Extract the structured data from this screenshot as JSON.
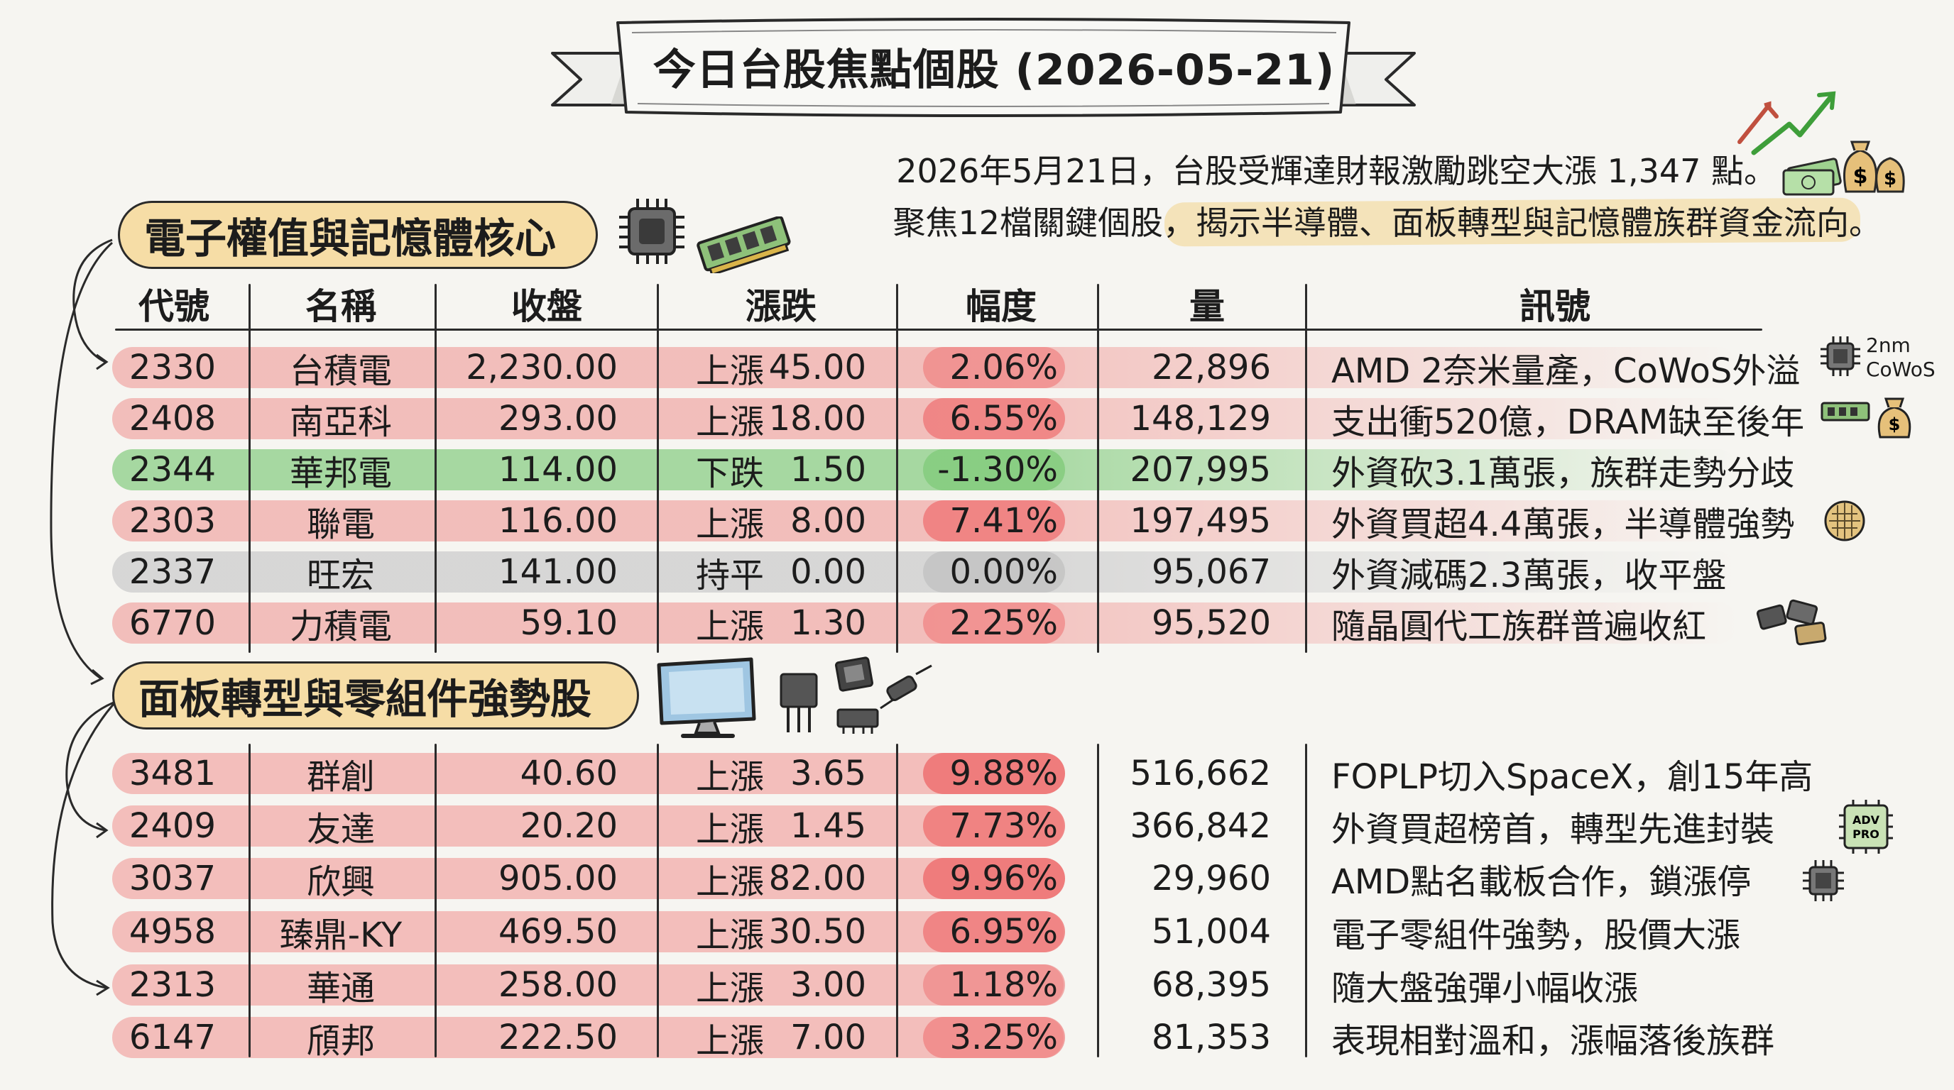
{
  "title": "今日台股焦點個股 (2026-05-21)",
  "intro": {
    "line1": "2026年5月21日，台股受輝達財報激勵跳空大漲 1,347 點。",
    "line2": "聚焦12檔關鍵個股，揭示半導體、面板轉型與記憶體族群資金流向。"
  },
  "sections": [
    {
      "title": "電子權值與記憶體核心",
      "rows": [
        {
          "code": "2330",
          "name": "台積電",
          "close": "2,230.00",
          "dir": "上漲",
          "chg": "45.00",
          "pct": "2.06%",
          "vol": "22,896",
          "signal": "AMD 2奈米量產，CoWoS外溢",
          "state": "up",
          "pct_strength": 0.2
        },
        {
          "code": "2408",
          "name": "南亞科",
          "close": "293.00",
          "dir": "上漲",
          "chg": "18.00",
          "pct": "6.55%",
          "vol": "148,129",
          "signal": "支出衝520億，DRAM缺至後年",
          "state": "up",
          "pct_strength": 0.66
        },
        {
          "code": "2344",
          "name": "華邦電",
          "close": "114.00",
          "dir": "下跌",
          "chg": "1.50",
          "pct": "-1.30%",
          "vol": "207,995",
          "signal": "外資砍3.1萬張，族群走勢分歧",
          "state": "down",
          "pct_strength": 0.13
        },
        {
          "code": "2303",
          "name": "聯電",
          "close": "116.00",
          "dir": "上漲",
          "chg": "8.00",
          "pct": "7.41%",
          "vol": "197,495",
          "signal": "外資買超4.4萬張，半導體強勢",
          "state": "up",
          "pct_strength": 0.74
        },
        {
          "code": "2337",
          "name": "旺宏",
          "close": "141.00",
          "dir": "持平",
          "chg": "0.00",
          "pct": "0.00%",
          "vol": "95,067",
          "signal": "外資減碼2.3萬張，收平盤",
          "state": "flat",
          "pct_strength": 0
        },
        {
          "code": "6770",
          "name": "力積電",
          "close": "59.10",
          "dir": "上漲",
          "chg": "1.30",
          "pct": "2.25%",
          "vol": "95,520",
          "signal": "隨晶圓代工族群普遍收紅",
          "state": "up",
          "pct_strength": 0.23
        }
      ]
    },
    {
      "title": "面板轉型與零組件強勢股",
      "rows": [
        {
          "code": "3481",
          "name": "群創",
          "close": "40.60",
          "dir": "上漲",
          "chg": "3.65",
          "pct": "9.88%",
          "vol": "516,662",
          "signal": "FOPLP切入SpaceX，創15年高",
          "state": "up",
          "pct_strength": 0.99
        },
        {
          "code": "2409",
          "name": "友達",
          "close": "20.20",
          "dir": "上漲",
          "chg": "1.45",
          "pct": "7.73%",
          "vol": "366,842",
          "signal": "外資買超榜首，轉型先進封裝",
          "state": "up",
          "pct_strength": 0.77
        },
        {
          "code": "3037",
          "name": "欣興",
          "close": "905.00",
          "dir": "上漲",
          "chg": "82.00",
          "pct": "9.96%",
          "vol": "29,960",
          "signal": "AMD點名載板合作，鎖漲停",
          "state": "up",
          "pct_strength": 1.0
        },
        {
          "code": "4958",
          "name": "臻鼎-KY",
          "close": "469.50",
          "dir": "上漲",
          "chg": "30.50",
          "pct": "6.95%",
          "vol": "51,004",
          "signal": "電子零組件強勢，股價大漲",
          "state": "up",
          "pct_strength": 0.7
        },
        {
          "code": "2313",
          "name": "華通",
          "close": "258.00",
          "dir": "上漲",
          "chg": "3.00",
          "pct": "1.18%",
          "vol": "68,395",
          "signal": "隨大盤強彈小幅收漲",
          "state": "up",
          "pct_strength": 0.12
        },
        {
          "code": "6147",
          "name": "頎邦",
          "close": "222.50",
          "dir": "上漲",
          "chg": "7.00",
          "pct": "3.25%",
          "vol": "81,353",
          "signal": "表現相對溫和，漲幅落後族群",
          "state": "up",
          "pct_strength": 0.33
        }
      ]
    }
  ],
  "headers": {
    "code": "代號",
    "name": "名稱",
    "close": "收盤",
    "change": "漲跌",
    "pct": "幅度",
    "vol": "量",
    "signal": "訊號"
  },
  "icon_labels": {
    "cowos_1": "2nm",
    "cowos_2": "CoWoS",
    "adv_1": "ADV",
    "adv_2": "PRO"
  },
  "colors": {
    "up_row": "#f2b9b6",
    "up_row_strong": "#ef9e9b",
    "down_row": "#9fd69a",
    "flat_row": "#d4d4d4",
    "pct_up": "#ef7c7c",
    "pct_down": "#86cc80",
    "pct_flat": "#c4c4c4",
    "pill": "#f6dda6",
    "highlight": "#f3dfb0"
  }
}
